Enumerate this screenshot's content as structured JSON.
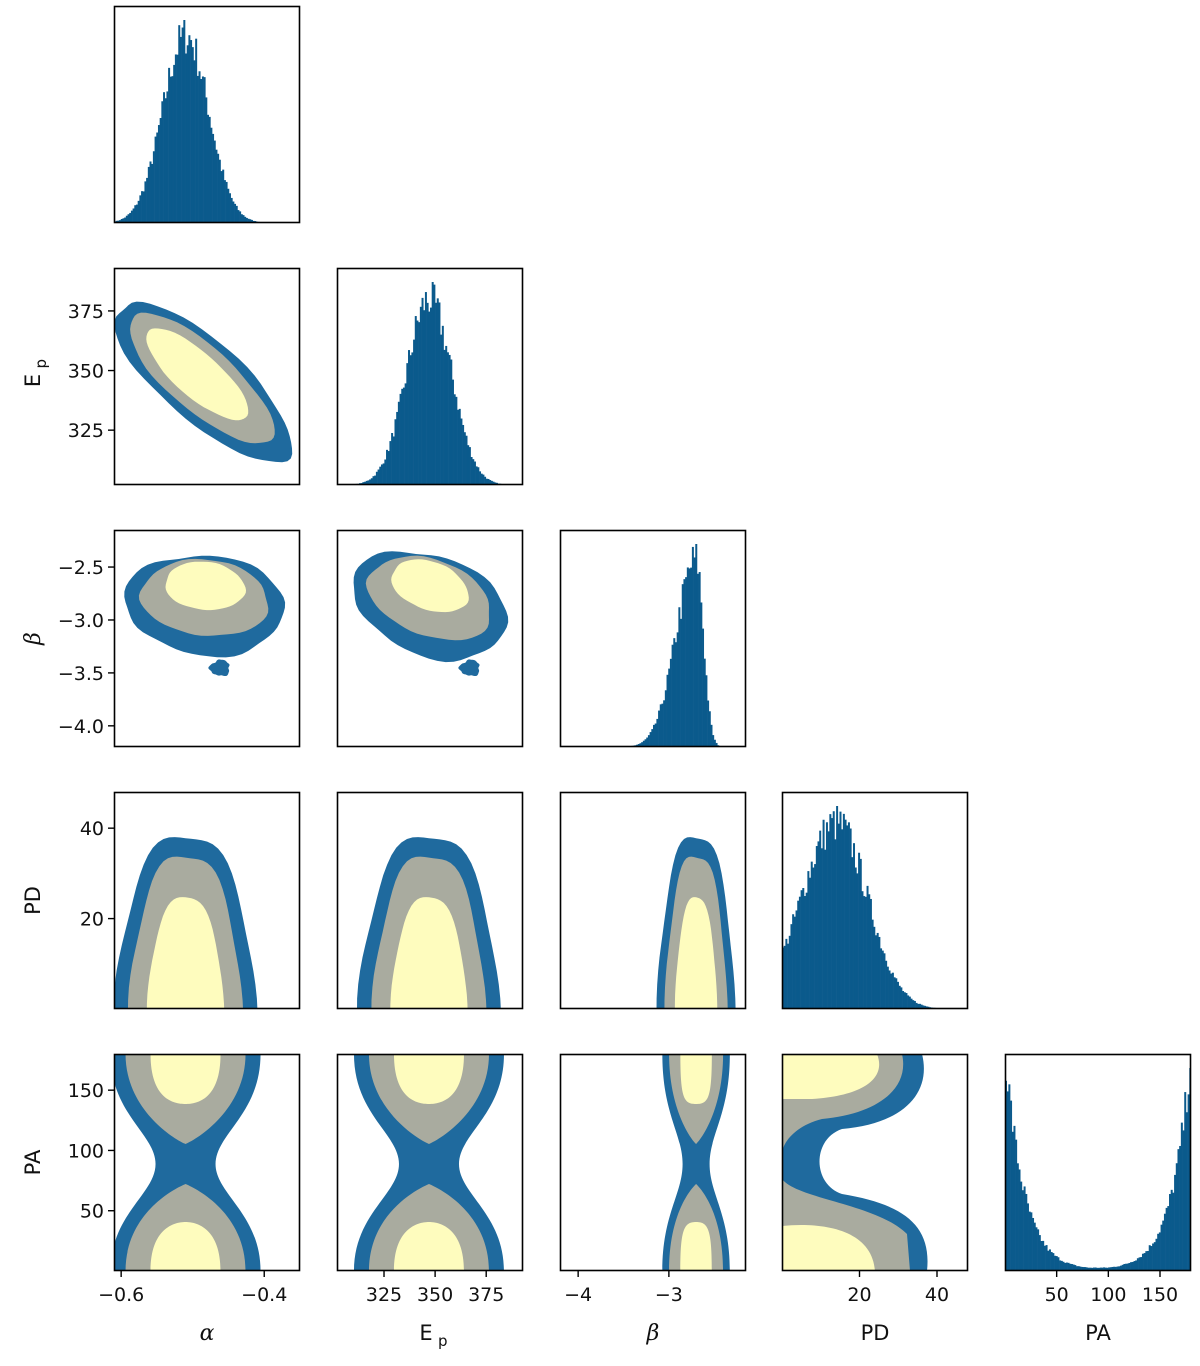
{
  "colors": {
    "blue": "#0b5a8c",
    "outer": "#1f6a9e",
    "middle": "#a9ab9f",
    "inner": "#fefcbe",
    "frame": "#000000"
  },
  "chart_data": {
    "type": "corner",
    "parameters": [
      {
        "key": "alpha",
        "label": "α",
        "range": [
          -0.61,
          -0.35
        ],
        "ticks": [
          -0.6,
          -0.4
        ],
        "tick_labels": [
          "−0.6",
          "−0.4"
        ]
      },
      {
        "key": "Ep",
        "label": "Ep",
        "label_main": "E",
        "label_sub": "p",
        "range": [
          302,
          393
        ],
        "ticks": [
          325,
          350,
          375
        ],
        "tick_labels": [
          "325",
          "350",
          "375"
        ]
      },
      {
        "key": "beta",
        "label": "β",
        "range": [
          -4.2,
          -2.15
        ],
        "ticks": [
          -4.0,
          -3.5,
          -3.0,
          -2.5
        ],
        "tick_labels": [
          "−4.0",
          "−3.5",
          "−3.0",
          "−2.5"
        ],
        "x_ticks": [
          -4,
          -3
        ],
        "x_tick_labels": [
          "−4",
          "−3"
        ]
      },
      {
        "key": "PD",
        "label": "PD",
        "range": [
          0,
          48
        ],
        "ticks": [
          20,
          40
        ],
        "tick_labels": [
          "20",
          "40"
        ]
      },
      {
        "key": "PA",
        "label": "PA",
        "range": [
          0,
          180
        ],
        "ticks": [
          50,
          100,
          150
        ],
        "tick_labels": [
          "50",
          "100",
          "150"
        ]
      }
    ],
    "marginals": [
      {
        "param": "alpha",
        "shape": "gaussian",
        "mean": -0.51,
        "sd": 0.032
      },
      {
        "param": "Ep",
        "shape": "gaussian",
        "mean": 347,
        "sd": 11
      },
      {
        "param": "beta",
        "shape": "skewed",
        "mode": -2.7,
        "sd_left": 0.22,
        "sd_right": 0.08
      },
      {
        "param": "PD",
        "shape": "skewed",
        "mode": 14,
        "sd_left": 9,
        "sd_right": 8
      },
      {
        "param": "PA",
        "shape": "edge-peaked",
        "peaks": [
          0,
          180
        ],
        "width": 18
      }
    ],
    "joint_levels": [
      "outer",
      "middle",
      "inner"
    ],
    "pairs": [
      {
        "x": "alpha",
        "y": "Ep",
        "correlation": "negative"
      },
      {
        "x": "alpha",
        "y": "beta"
      },
      {
        "x": "Ep",
        "y": "beta"
      },
      {
        "x": "alpha",
        "y": "PD"
      },
      {
        "x": "Ep",
        "y": "PD"
      },
      {
        "x": "beta",
        "y": "PD"
      },
      {
        "x": "alpha",
        "y": "PA",
        "shape": "bimodal-edges"
      },
      {
        "x": "Ep",
        "y": "PA",
        "shape": "bimodal-edges"
      },
      {
        "x": "beta",
        "y": "PA",
        "shape": "bimodal-edges"
      },
      {
        "x": "PD",
        "y": "PA",
        "shape": "bimodal-edges"
      }
    ]
  }
}
